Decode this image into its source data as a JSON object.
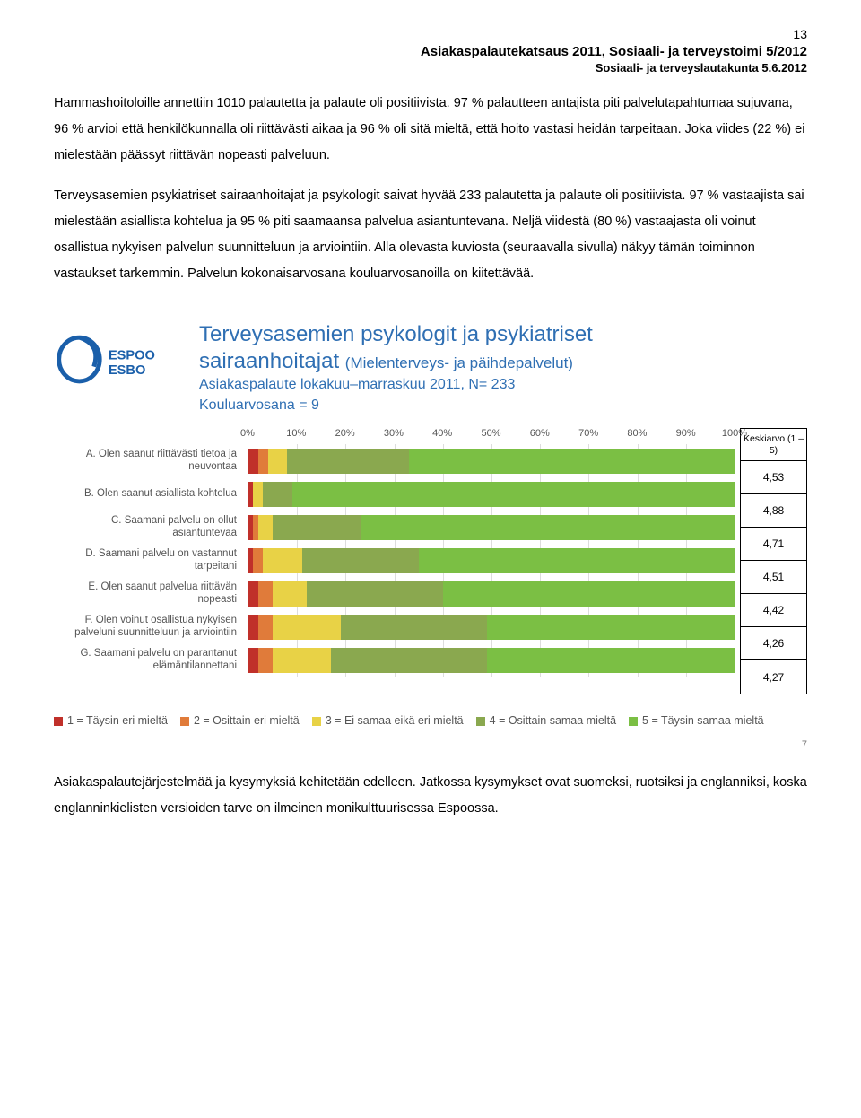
{
  "page_number": "13",
  "header": {
    "title": "Asiakaspalautekatsaus 2011, Sosiaali- ja terveystoimi 5/2012",
    "subtitle": "Sosiaali- ja terveyslautakunta 5.6.2012"
  },
  "paragraphs": [
    "Hammashoitoloille annettiin 1010 palautetta ja palaute oli positiivista. 97 % palautteen antajista piti palvelutapahtumaa sujuvana, 96 % arvioi että henkilökunnalla oli riittävästi aikaa ja 96 % oli sitä mieltä, että hoito vastasi heidän tarpeitaan. Joka viides (22 %) ei mielestään päässyt riittävän nopeasti palveluun.",
    "Terveysasemien psykiatriset sairaanhoitajat ja psykologit saivat hyvää 233 palautetta ja palaute oli positiivista. 97 % vastaajista sai mielestään asiallista kohtelua ja 95 % piti saamaansa palvelua asiantuntevana. Neljä viidestä (80 %) vastaajasta oli voinut osallistua nykyisen palvelun suunnitteluun ja arviointiin. Alla olevasta kuviosta (seuraavalla sivulla) näkyy tämän toiminnon vastaukset tarkemmin. Palvelun kokonaisarvosana kouluarvosanoilla on kiitettävää."
  ],
  "logo_text": "ESPOO ESBO",
  "logo_color": "#1a5faa",
  "chart": {
    "title_line1": "Terveysasemien psykologit ja psykiatriset",
    "title_line2a": "sairaanhoitajat ",
    "title_line2b": "(Mielenterveys- ja päihdepalvelut)",
    "subtitle1": "Asiakaspalaute lokakuu–marraskuu 2011, N= 233",
    "subtitle2": "Kouluarvosana = 9",
    "x_ticks": [
      "0%",
      "10%",
      "20%",
      "30%",
      "40%",
      "50%",
      "60%",
      "70%",
      "80%",
      "90%",
      "100%"
    ],
    "row_labels": [
      "A. Olen saanut riittävästi tietoa ja neuvontaa",
      "B. Olen saanut asiallista kohtelua",
      "C. Saamani palvelu on ollut asiantuntevaa",
      "D. Saamani palvelu on vastannut tarpeitani",
      "E. Olen saanut palvelua riittävän nopeasti",
      "F. Olen voinut osallistua  nykyisen palveluni suunnitteluun ja arviointiin",
      "G. Saamani palvelu on parantanut elämäntilannettani"
    ],
    "colors": {
      "c1": "#c0302a",
      "c2": "#e07b3a",
      "c3": "#e8d246",
      "c4": "#8aa84f",
      "c5": "#7bbf44"
    },
    "rows": [
      {
        "segs": [
          2,
          2,
          4,
          25,
          67
        ]
      },
      {
        "segs": [
          1,
          0,
          2,
          6,
          91
        ]
      },
      {
        "segs": [
          1,
          1,
          3,
          18,
          77
        ]
      },
      {
        "segs": [
          1,
          2,
          8,
          24,
          65
        ]
      },
      {
        "segs": [
          2,
          3,
          7,
          28,
          60
        ]
      },
      {
        "segs": [
          2,
          3,
          14,
          30,
          51
        ]
      },
      {
        "segs": [
          2,
          3,
          12,
          32,
          51
        ]
      }
    ],
    "avg_header": "Keskiarvo (1 – 5)",
    "avg_values": [
      "4,53",
      "4,88",
      "4,71",
      "4,51",
      "4,42",
      "4,26",
      "4,27"
    ],
    "legend": [
      {
        "color": "c1",
        "text": "1 = Täysin eri mieltä"
      },
      {
        "color": "c2",
        "text": "2 = Osittain eri mieltä"
      },
      {
        "color": "c3",
        "text": "3 = Ei samaa eikä eri mieltä"
      },
      {
        "color": "c4",
        "text": "4 = Osittain samaa mieltä"
      },
      {
        "color": "c5",
        "text": "5 = Täysin samaa mieltä"
      }
    ],
    "slide_number": "7"
  },
  "footer_paragraph": "Asiakaspalautejärjestelmää ja kysymyksiä kehitetään edelleen. Jatkossa kysymykset ovat suomeksi, ruotsiksi ja englanniksi, koska englanninkielisten versioiden tarve on ilmeinen monikulttuurisessa Espoossa."
}
